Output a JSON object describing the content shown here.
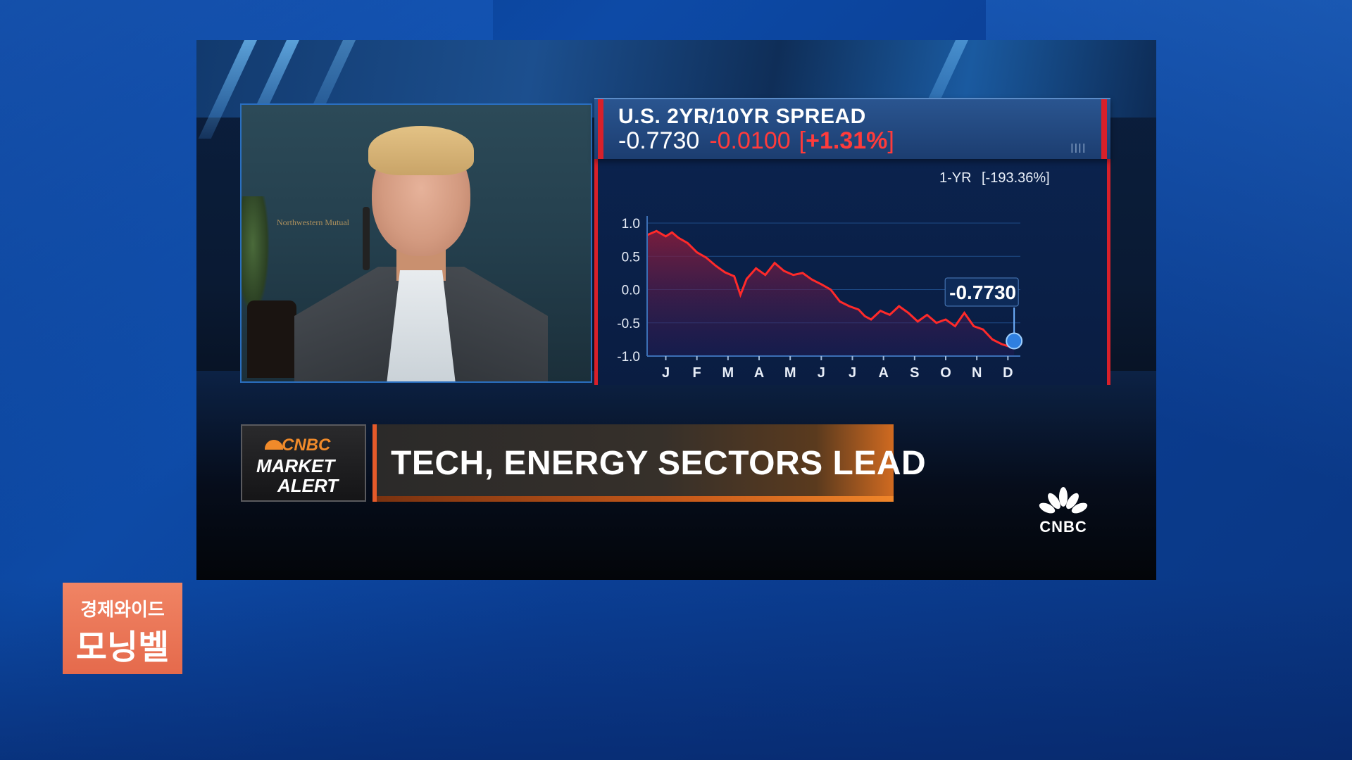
{
  "chart_panel": {
    "title": "U.S. 2YR/10YR SPREAD",
    "last": "-0.7730",
    "change": "-0.0100",
    "percent": "+1.31%",
    "header_marks": "||||"
  },
  "lower_third": {
    "brand": "CNBC",
    "alert_line1": "MARKET",
    "alert_line2": "ALERT",
    "headline": "TECH, ENERGY SECTORS LEAD"
  },
  "network_logo": "CNBC",
  "video": {
    "background_logo_text": "Northwestern Mutual"
  },
  "badge": {
    "line1": "경제와이드",
    "line2": "모닝벨"
  },
  "colors": {
    "accent_red": "#d8202a",
    "series_red": "#ff2a2a",
    "headline_orange": "#e55a2a",
    "badge": "#ee7a5a"
  },
  "chart_data": {
    "type": "area",
    "period_label": "1-YR",
    "period_change": "[-193.36%]",
    "last_value_label": "-0.7730",
    "x_ticks": [
      "J",
      "F",
      "M",
      "A",
      "M",
      "J",
      "J",
      "A",
      "S",
      "O",
      "N",
      "D"
    ],
    "y_ticks": [
      "1.0",
      "0.5",
      "0.0",
      "-0.5",
      "-1.0"
    ],
    "ylim": [
      -1.0,
      1.0
    ],
    "xlim": [
      0,
      12
    ],
    "series": [
      {
        "values": [
          [
            0.0,
            0.82
          ],
          [
            0.3,
            0.88
          ],
          [
            0.6,
            0.8
          ],
          [
            0.8,
            0.86
          ],
          [
            1.0,
            0.78
          ],
          [
            1.3,
            0.7
          ],
          [
            1.6,
            0.56
          ],
          [
            1.9,
            0.48
          ],
          [
            2.2,
            0.36
          ],
          [
            2.5,
            0.26
          ],
          [
            2.8,
            0.2
          ],
          [
            3.0,
            -0.08
          ],
          [
            3.2,
            0.16
          ],
          [
            3.5,
            0.32
          ],
          [
            3.8,
            0.22
          ],
          [
            4.1,
            0.4
          ],
          [
            4.4,
            0.28
          ],
          [
            4.7,
            0.22
          ],
          [
            5.0,
            0.25
          ],
          [
            5.3,
            0.15
          ],
          [
            5.6,
            0.08
          ],
          [
            5.9,
            0.0
          ],
          [
            6.2,
            -0.18
          ],
          [
            6.5,
            -0.25
          ],
          [
            6.8,
            -0.3
          ],
          [
            7.0,
            -0.4
          ],
          [
            7.2,
            -0.45
          ],
          [
            7.5,
            -0.32
          ],
          [
            7.8,
            -0.38
          ],
          [
            8.1,
            -0.25
          ],
          [
            8.4,
            -0.35
          ],
          [
            8.7,
            -0.48
          ],
          [
            9.0,
            -0.38
          ],
          [
            9.3,
            -0.5
          ],
          [
            9.6,
            -0.45
          ],
          [
            9.9,
            -0.55
          ],
          [
            10.2,
            -0.35
          ],
          [
            10.5,
            -0.55
          ],
          [
            10.8,
            -0.6
          ],
          [
            11.1,
            -0.75
          ],
          [
            11.4,
            -0.82
          ],
          [
            11.6,
            -0.85
          ],
          [
            11.8,
            -0.773
          ]
        ]
      }
    ]
  }
}
